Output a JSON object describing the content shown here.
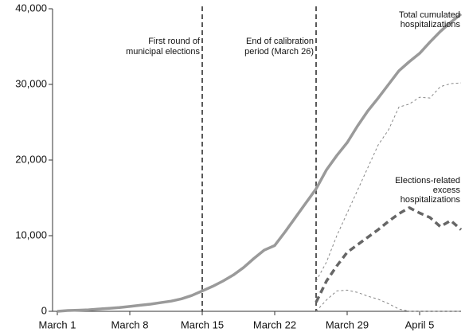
{
  "chart_data": {
    "type": "line",
    "x": [
      0,
      1,
      2,
      3,
      4,
      5,
      6,
      7,
      8,
      9,
      10,
      11,
      12,
      13,
      14,
      15,
      16,
      17,
      18,
      19,
      20,
      21,
      22,
      23,
      24,
      25,
      26,
      27,
      28,
      29,
      30,
      31,
      32,
      33,
      34,
      35,
      36,
      37,
      38,
      39
    ],
    "xlim": [
      0,
      39
    ],
    "xticks": [
      {
        "value": 0,
        "label": "March 1"
      },
      {
        "value": 7,
        "label": "March 8"
      },
      {
        "value": 14,
        "label": "March 15"
      },
      {
        "value": 21,
        "label": "March 22"
      },
      {
        "value": 28,
        "label": "March 29"
      },
      {
        "value": 35,
        "label": "April 5"
      }
    ],
    "ylim": [
      0,
      40000
    ],
    "yticks": [
      0,
      {
        "value": 10000,
        "label": "10,000"
      },
      {
        "value": 20000,
        "label": "20,000"
      },
      {
        "value": 30000,
        "label": "30,000"
      },
      {
        "value": 40000,
        "label": "40,000"
      }
    ],
    "series": [
      {
        "name": [
          "Total cumulated",
          "hospitalizations"
        ],
        "color": "#9a9a9a",
        "width": 3.5,
        "dash": "none",
        "values": [
          0,
          100,
          150,
          200,
          300,
          400,
          500,
          650,
          800,
          950,
          1150,
          1350,
          1650,
          2100,
          2700,
          3300,
          4000,
          4800,
          5800,
          7000,
          8100,
          8700,
          10500,
          12400,
          14300,
          16200,
          18700,
          20600,
          22300,
          24500,
          26500,
          28200,
          30000,
          31800,
          33000,
          34100,
          35600,
          37000,
          38200,
          39300
        ]
      },
      {
        "color": "#888888",
        "width": 1,
        "dash": "3 3",
        "values": [
          null,
          null,
          null,
          null,
          null,
          null,
          null,
          null,
          null,
          null,
          null,
          null,
          null,
          null,
          null,
          null,
          null,
          null,
          null,
          null,
          null,
          null,
          null,
          null,
          null,
          4000,
          6500,
          10000,
          13000,
          16000,
          19000,
          22000,
          24000,
          27000,
          27400,
          28300,
          28200,
          29700,
          30100,
          30200
        ]
      },
      {
        "name": [
          "Elections-related",
          "excess",
          "hospitalizations"
        ],
        "color": "#666666",
        "width": 3.5,
        "dash": "8 5",
        "values": [
          null,
          null,
          null,
          null,
          null,
          null,
          null,
          null,
          null,
          null,
          null,
          null,
          null,
          null,
          null,
          null,
          null,
          null,
          null,
          null,
          null,
          null,
          null,
          null,
          null,
          1200,
          4000,
          6000,
          7800,
          8800,
          9800,
          10800,
          11900,
          12900,
          13700,
          13000,
          12400,
          11200,
          12000,
          10800
        ]
      },
      {
        "color": "#888888",
        "width": 1,
        "dash": "3 3",
        "values": [
          null,
          null,
          null,
          null,
          null,
          null,
          null,
          null,
          null,
          null,
          null,
          null,
          null,
          null,
          null,
          null,
          null,
          null,
          null,
          null,
          null,
          null,
          null,
          null,
          null,
          0,
          1500,
          2700,
          2800,
          2500,
          2000,
          1600,
          1000,
          300,
          0,
          0,
          0,
          0,
          0,
          0
        ]
      }
    ],
    "annotations": [
      {
        "x": 14,
        "text": [
          "First round of",
          "municipal elections"
        ]
      },
      {
        "x": 25,
        "text": [
          "End of calibration",
          "period (March 26)"
        ]
      }
    ]
  }
}
